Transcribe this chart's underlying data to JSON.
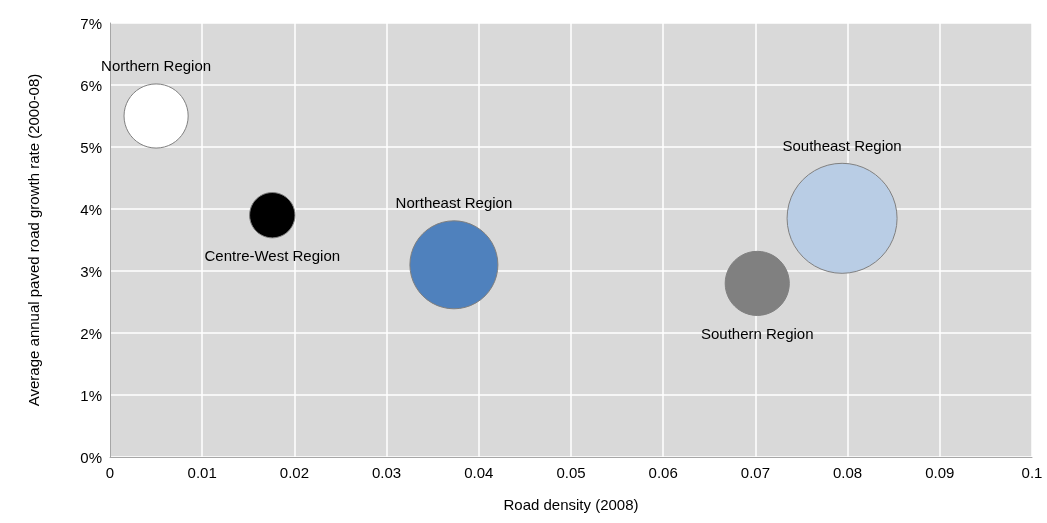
{
  "chart_data": {
    "type": "bubble",
    "xlabel": "Road density (2008)",
    "ylabel": "Average annual paved road growth rate (2000-08)",
    "xlim": [
      0,
      0.1
    ],
    "xticks": [
      0,
      0.01,
      0.02,
      0.03,
      0.04,
      0.05,
      0.06,
      0.07,
      0.08,
      0.09,
      0.1
    ],
    "ylim": [
      0,
      7
    ],
    "yticks": [
      {
        "value": 0,
        "label": "0%"
      },
      {
        "value": 1,
        "label": "1%"
      },
      {
        "value": 2,
        "label": "2%"
      },
      {
        "value": 3,
        "label": "3%"
      },
      {
        "value": 4,
        "label": "4%"
      },
      {
        "value": 5,
        "label": "5%"
      },
      {
        "value": 6,
        "label": "6%"
      },
      {
        "value": 7,
        "label": "7%"
      }
    ],
    "grid": true,
    "legend": false,
    "series": [
      {
        "name": "Northern Region",
        "color": "#ffffff",
        "x": [
          0.005
        ],
        "values": [
          5.5
        ],
        "sizes": [
          0.34
        ]
      },
      {
        "name": "Centre-West Region",
        "color": "#000000",
        "x": [
          0.0176
        ],
        "values": [
          3.9
        ],
        "sizes": [
          0.17
        ]
      },
      {
        "name": "Northeast Region",
        "color": "#4f81bd",
        "x": [
          0.0373
        ],
        "values": [
          3.1
        ],
        "sizes": [
          0.64
        ]
      },
      {
        "name": "Southern Region",
        "color": "#808080",
        "x": [
          0.0702
        ],
        "values": [
          2.8
        ],
        "sizes": [
          0.34
        ]
      },
      {
        "name": "Southeast Region",
        "color": "#b9cde5",
        "x": [
          0.0794
        ],
        "values": [
          3.85
        ],
        "sizes": [
          1
        ]
      }
    ]
  }
}
